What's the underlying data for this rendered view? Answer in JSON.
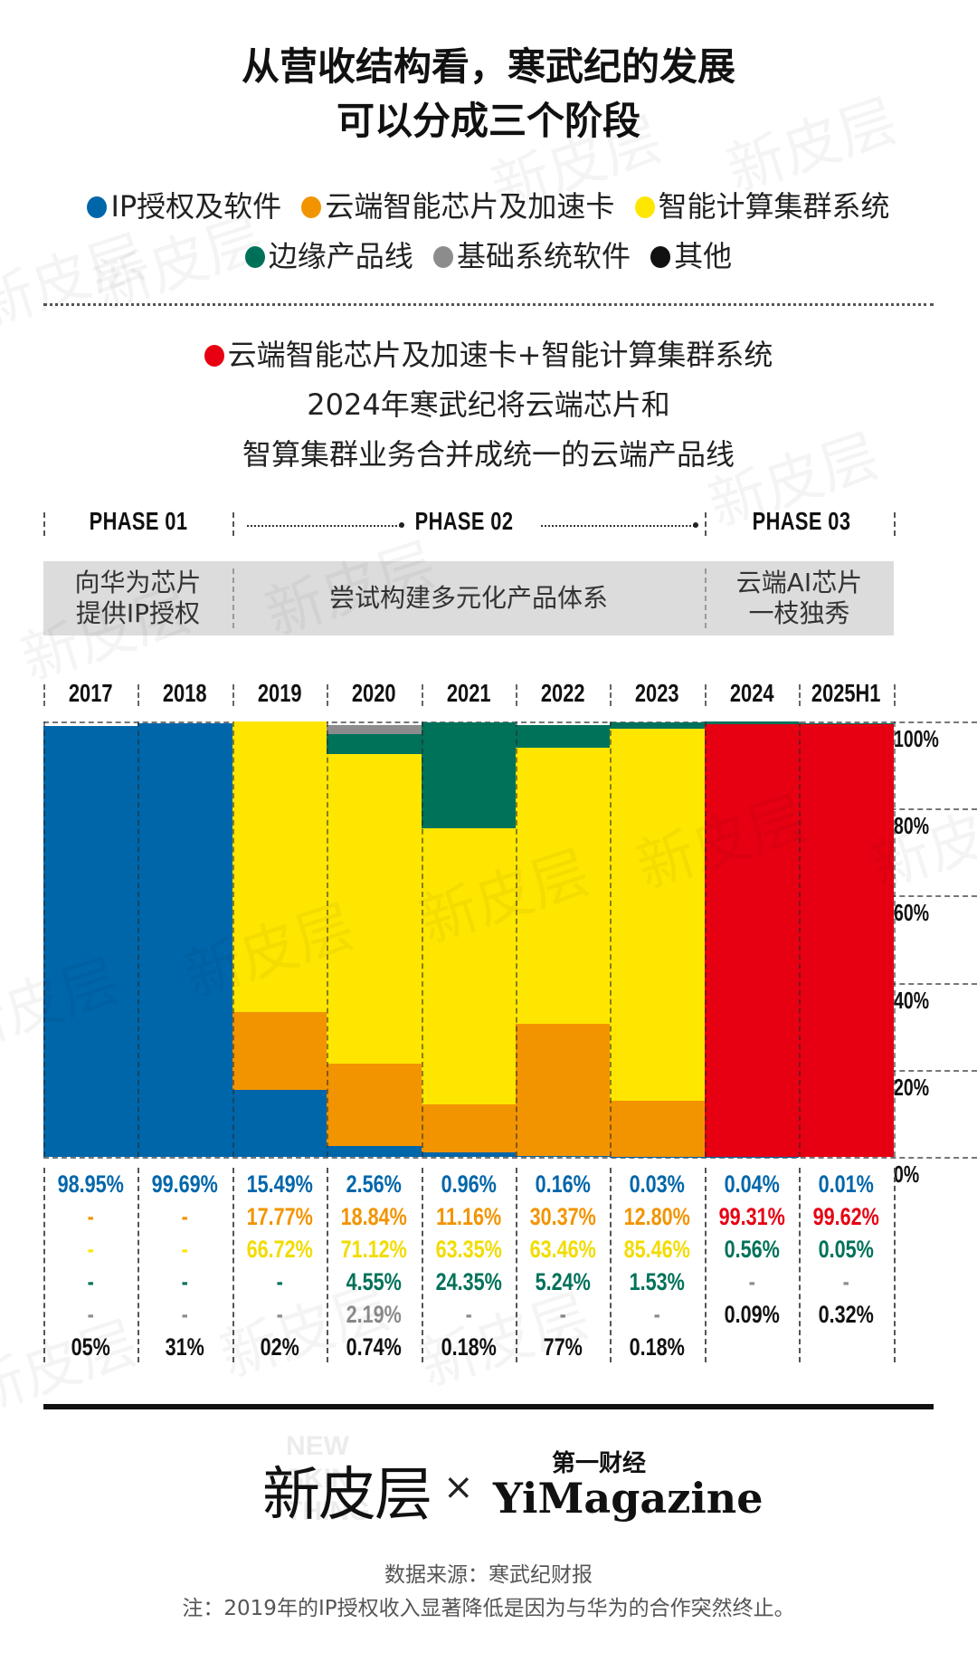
{
  "title": {
    "line1": "从营收结构看，寒武纪的发展",
    "line2": "可以分成三个阶段"
  },
  "legend": {
    "row1": [
      {
        "label": "IP授权及软件",
        "color": "#0066aa"
      },
      {
        "label": "云端智能芯片及加速卡",
        "color": "#f29400"
      },
      {
        "label": "智能计算集群系统",
        "color": "#ffe600"
      }
    ],
    "row2": [
      {
        "label": "边缘产品线",
        "color": "#00725a"
      },
      {
        "label": "基础系统软件",
        "color": "#8c8c8c"
      },
      {
        "label": "其他",
        "color": "#111111"
      }
    ]
  },
  "merged_note": {
    "label": "云端智能芯片及加速卡+智能计算集群系统",
    "color": "#e60012",
    "line2": "2024年寒武纪将云端芯片和",
    "line3": "智算集群业务合并成统一的云端产品线"
  },
  "phases": [
    {
      "label": "PHASE 01",
      "desc_line1": "向华为芯片",
      "desc_line2": "提供IP授权"
    },
    {
      "label": "PHASE 02",
      "desc_line1": "尝试构建多元化产品体系",
      "desc_line2": ""
    },
    {
      "label": "PHASE 03",
      "desc_line1": "云端AI芯片",
      "desc_line2": "一枝独秀"
    }
  ],
  "y_axis": [
    "100%",
    "80%",
    "60%",
    "40%",
    "20%",
    "0%"
  ],
  "chart_data": {
    "type": "bar",
    "stacked": true,
    "normalized": true,
    "title": "从营收结构看，寒武纪的发展可以分成三个阶段",
    "xlabel": "",
    "ylabel": "",
    "ylim": [
      0,
      100
    ],
    "grid": true,
    "legend_position": "top",
    "categories": [
      "2017",
      "2018",
      "2019",
      "2020",
      "2021",
      "2022",
      "2023",
      "2024",
      "2025H1"
    ],
    "series": [
      {
        "name": "IP授权及软件",
        "color": "#0066aa",
        "values": [
          98.95,
          99.69,
          15.49,
          2.56,
          0.96,
          0.16,
          0.03,
          0.04,
          0.01
        ]
      },
      {
        "name": "云端智能芯片及加速卡",
        "color": "#f29400",
        "values": [
          null,
          null,
          17.77,
          18.84,
          11.16,
          30.37,
          12.8,
          null,
          null
        ]
      },
      {
        "name": "云端智能芯片及加速卡+智能计算集群系统",
        "color": "#e60012",
        "values": [
          null,
          null,
          null,
          null,
          null,
          null,
          null,
          99.31,
          99.62
        ]
      },
      {
        "name": "智能计算集群系统",
        "color": "#ffe600",
        "values": [
          null,
          null,
          66.72,
          71.12,
          63.35,
          63.46,
          85.46,
          null,
          null
        ]
      },
      {
        "name": "边缘产品线",
        "color": "#00725a",
        "values": [
          null,
          null,
          null,
          4.55,
          24.35,
          5.24,
          1.53,
          0.56,
          0.05
        ]
      },
      {
        "name": "基础系统软件",
        "color": "#8c8c8c",
        "values": [
          null,
          null,
          null,
          2.19,
          null,
          null,
          null,
          null,
          null
        ]
      },
      {
        "name": "其他",
        "color": "#111111",
        "values": [
          0.05,
          0.31,
          0.02,
          0.74,
          0.18,
          0.77,
          0.18,
          0.09,
          0.32
        ]
      }
    ],
    "phases": [
      {
        "name": "PHASE 01",
        "categories": [
          "2017",
          "2018"
        ],
        "note": "向华为芯片提供IP授权"
      },
      {
        "name": "PHASE 02",
        "categories": [
          "2019",
          "2020",
          "2021",
          "2022",
          "2023"
        ],
        "note": "尝试构建多元化产品体系"
      },
      {
        "name": "PHASE 03",
        "categories": [
          "2024",
          "2025H1"
        ],
        "note": "云端AI芯片一枝独秀"
      }
    ]
  },
  "table": {
    "columns": [
      {
        "year": "2017",
        "rows": [
          {
            "text": "98.95%",
            "color": "#0066aa"
          },
          {
            "text": "-",
            "color": "#f29400"
          },
          {
            "text": "-",
            "color": "#ffe600"
          },
          {
            "text": "-",
            "color": "#00725a"
          },
          {
            "text": "-",
            "color": "#8c8c8c"
          },
          {
            "text": "05%",
            "color": "#111111"
          }
        ]
      },
      {
        "year": "2018",
        "rows": [
          {
            "text": "99.69%",
            "color": "#0066aa"
          },
          {
            "text": "-",
            "color": "#f29400"
          },
          {
            "text": "-",
            "color": "#ffe600"
          },
          {
            "text": "-",
            "color": "#00725a"
          },
          {
            "text": "-",
            "color": "#8c8c8c"
          },
          {
            "text": "31%",
            "color": "#111111"
          }
        ]
      },
      {
        "year": "2019",
        "rows": [
          {
            "text": "15.49%",
            "color": "#0066aa"
          },
          {
            "text": "17.77%",
            "color": "#f29400"
          },
          {
            "text": "66.72%",
            "color": "#f2dc00"
          },
          {
            "text": "-",
            "color": "#00725a"
          },
          {
            "text": "-",
            "color": "#8c8c8c"
          },
          {
            "text": "02%",
            "color": "#111111"
          }
        ]
      },
      {
        "year": "2020",
        "rows": [
          {
            "text": "2.56%",
            "color": "#0066aa"
          },
          {
            "text": "18.84%",
            "color": "#f29400"
          },
          {
            "text": "71.12%",
            "color": "#f2dc00"
          },
          {
            "text": "4.55%",
            "color": "#00725a"
          },
          {
            "text": "2.19%",
            "color": "#8c8c8c"
          },
          {
            "text": "0.74%",
            "color": "#111111"
          }
        ]
      },
      {
        "year": "2021",
        "rows": [
          {
            "text": "0.96%",
            "color": "#0066aa"
          },
          {
            "text": "11.16%",
            "color": "#f29400"
          },
          {
            "text": "63.35%",
            "color": "#f2dc00"
          },
          {
            "text": "24.35%",
            "color": "#00725a"
          },
          {
            "text": "-",
            "color": "#8c8c8c"
          },
          {
            "text": "0.18%",
            "color": "#111111"
          }
        ]
      },
      {
        "year": "2022",
        "rows": [
          {
            "text": "0.16%",
            "color": "#0066aa"
          },
          {
            "text": "30.37%",
            "color": "#f29400"
          },
          {
            "text": "63.46%",
            "color": "#f2dc00"
          },
          {
            "text": "5.24%",
            "color": "#00725a"
          },
          {
            "text": "-",
            "color": "#8c8c8c"
          },
          {
            "text": "77%",
            "color": "#111111"
          }
        ]
      },
      {
        "year": "2023",
        "rows": [
          {
            "text": "0.03%",
            "color": "#0066aa"
          },
          {
            "text": "12.80%",
            "color": "#f29400"
          },
          {
            "text": "85.46%",
            "color": "#f2dc00"
          },
          {
            "text": "1.53%",
            "color": "#00725a"
          },
          {
            "text": "-",
            "color": "#8c8c8c"
          },
          {
            "text": "0.18%",
            "color": "#111111"
          }
        ]
      },
      {
        "year": "2024",
        "rows": [
          {
            "text": "0.04%",
            "color": "#0066aa"
          },
          {
            "text": "99.31%",
            "color": "#e60012"
          },
          {
            "text": "0.56%",
            "color": "#00725a"
          },
          {
            "text": "-",
            "color": "#8c8c8c"
          },
          {
            "text": "0.09%",
            "color": "#111111"
          },
          {
            "text": "",
            "color": "#111111"
          }
        ]
      },
      {
        "year": "2025H1",
        "rows": [
          {
            "text": "0.01%",
            "color": "#0066aa"
          },
          {
            "text": "99.62%",
            "color": "#e60012"
          },
          {
            "text": "0.05%",
            "color": "#00725a"
          },
          {
            "text": "-",
            "color": "#8c8c8c"
          },
          {
            "text": "0.32%",
            "color": "#111111"
          },
          {
            "text": "",
            "color": "#111111"
          }
        ]
      }
    ]
  },
  "logos": {
    "left": "新皮层",
    "left_bg": "NEW\nSKIN\nTHING",
    "cross": "×",
    "right_cn": "第一财经",
    "right_en": "YiMagazine"
  },
  "footer": {
    "source": "数据来源：寒武纪财报",
    "note": "注：2019年的IP授权收入显著降低是因为与华为的合作突然终止。"
  },
  "watermark_text": "新皮层"
}
